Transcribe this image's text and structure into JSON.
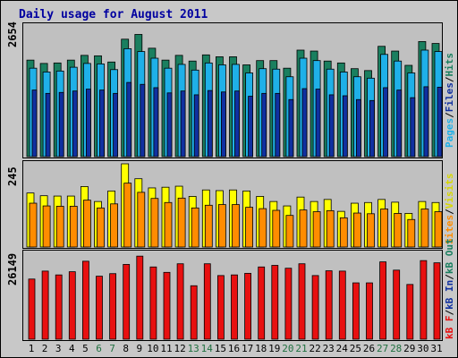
{
  "title": "Daily usage for August 2011",
  "colors": {
    "hits": "#1a7f5f",
    "files": "#1fb0e8",
    "pages": "#1030a0",
    "visits": "#ffff00",
    "sites": "#ff8c00",
    "kbytes": "#e81010",
    "weekend_label": "#207040",
    "weekday_label": "#000000"
  },
  "chart_data": [
    {
      "type": "bar",
      "panel": "hits-files-pages",
      "ymax_label": "2654",
      "legend": {
        "pages": "Pages",
        "sep1": "/",
        "files": "Files",
        "sep2": "/",
        "hits": "Hits"
      },
      "categories": [
        "1",
        "2",
        "3",
        "4",
        "5",
        "6",
        "7",
        "8",
        "9",
        "10",
        "11",
        "12",
        "13",
        "14",
        "15",
        "16",
        "17",
        "18",
        "19",
        "20",
        "21",
        "22",
        "23",
        "24",
        "25",
        "26",
        "27",
        "28",
        "29",
        "30",
        "31"
      ],
      "ylim": [
        0,
        2654
      ],
      "series": [
        {
          "name": "Hits",
          "values": [
            2030,
            1960,
            1970,
            2030,
            2130,
            2120,
            1990,
            2470,
            2570,
            2280,
            2030,
            2130,
            2010,
            2140,
            2100,
            2100,
            1930,
            2020,
            2020,
            1860,
            2240,
            2220,
            2010,
            1970,
            1850,
            1810,
            2320,
            2220,
            1920,
            2420,
            2380
          ]
        },
        {
          "name": "Files",
          "values": [
            1860,
            1780,
            1800,
            1880,
            1960,
            1950,
            1830,
            2270,
            2210,
            2070,
            1860,
            1940,
            1820,
            1970,
            1930,
            1940,
            1760,
            1850,
            1840,
            1680,
            2070,
            2020,
            1840,
            1780,
            1680,
            1650,
            2150,
            2010,
            1760,
            2240,
            2210
          ]
        },
        {
          "name": "Pages",
          "values": [
            1400,
            1330,
            1350,
            1380,
            1420,
            1400,
            1330,
            1560,
            1520,
            1450,
            1340,
            1380,
            1300,
            1390,
            1360,
            1380,
            1270,
            1330,
            1330,
            1200,
            1430,
            1420,
            1300,
            1280,
            1200,
            1180,
            1450,
            1400,
            1240,
            1470,
            1460
          ]
        }
      ]
    },
    {
      "type": "bar",
      "panel": "visits-sites",
      "ymax_label": "245",
      "legend": {
        "sites": "Sites",
        "sep1": "/",
        "visits": "Visits"
      },
      "categories": [
        "1",
        "2",
        "3",
        "4",
        "5",
        "6",
        "7",
        "8",
        "9",
        "10",
        "11",
        "12",
        "13",
        "14",
        "15",
        "16",
        "17",
        "18",
        "19",
        "20",
        "21",
        "22",
        "23",
        "24",
        "25",
        "26",
        "27",
        "28",
        "29",
        "30",
        "31"
      ],
      "ylim": [
        0,
        245
      ],
      "series": [
        {
          "name": "Visits",
          "values": [
            159,
            151,
            150,
            150,
            178,
            134,
            165,
            245,
            201,
            174,
            176,
            179,
            149,
            168,
            166,
            168,
            165,
            149,
            134,
            121,
            147,
            134,
            140,
            105,
            129,
            131,
            140,
            132,
            99,
            134,
            131
          ]
        },
        {
          "name": "Sites",
          "values": [
            129,
            121,
            120,
            120,
            138,
            115,
            127,
            188,
            161,
            143,
            131,
            144,
            115,
            123,
            125,
            125,
            117,
            113,
            108,
            93,
            109,
            104,
            107,
            86,
            100,
            98,
            112,
            99,
            81,
            112,
            104
          ]
        }
      ]
    },
    {
      "type": "bar",
      "panel": "kbytes",
      "ymax_label": "26149",
      "legend": {
        "kb_f": "kB F",
        "sep1": "/",
        "kb_in": "kB In",
        "sep2": "/",
        "kb_out": "kB Out"
      },
      "categories": [
        "1",
        "2",
        "3",
        "4",
        "5",
        "6",
        "7",
        "8",
        "9",
        "10",
        "11",
        "12",
        "13",
        "14",
        "15",
        "16",
        "17",
        "18",
        "19",
        "20",
        "21",
        "22",
        "23",
        "24",
        "25",
        "26",
        "27",
        "28",
        "29",
        "30",
        "31"
      ],
      "ylim": [
        0,
        26149
      ],
      "series": [
        {
          "name": "kB F",
          "values": [
            18900,
            21400,
            20200,
            21200,
            24500,
            19800,
            20600,
            23500,
            26100,
            22700,
            21000,
            23700,
            16800,
            23700,
            20000,
            20200,
            20700,
            22700,
            23200,
            22300,
            23700,
            20000,
            21500,
            21400,
            17700,
            17700,
            24300,
            21700,
            17200,
            24700,
            24000
          ]
        }
      ]
    }
  ],
  "weekend_days": [
    "6",
    "7",
    "13",
    "14",
    "20",
    "21",
    "27",
    "28"
  ]
}
